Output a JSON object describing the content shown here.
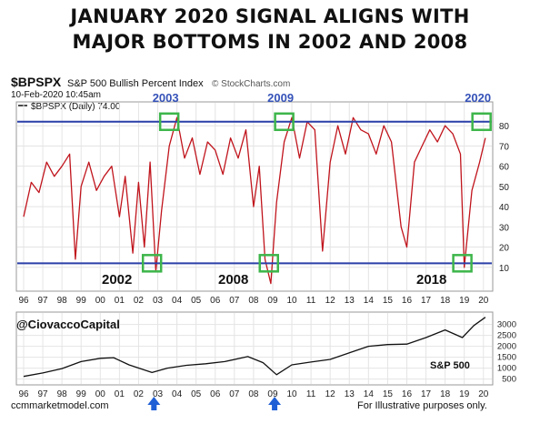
{
  "headline": {
    "line1": "JANUARY 2020 SIGNAL ALIGNS WITH",
    "line2": "MAJOR BOTTOMS IN 2002 AND 2008"
  },
  "header": {
    "symbol": "$BPSPX",
    "name": "S&P 500 Bullish Percent Index",
    "source": "© StockCharts.com",
    "timestamp": "10-Feb-2020 10:45am",
    "legend": "$BPSPX (Daily) 74.00"
  },
  "annotations": {
    "top_years": [
      "2003",
      "2009",
      "2020"
    ],
    "bottom_years": [
      "2002",
      "2008",
      "2018"
    ],
    "handle": "@CiovaccoCapital",
    "sp_label": "S&P 500"
  },
  "footer": {
    "left": "ccmmarketmodel.com",
    "right": "For Illustrative purposes only."
  },
  "colors": {
    "bp_line": "#c0141c",
    "ref_line": "#2a3fa8",
    "box": "#3db54a",
    "arrow": "#1f5fd6",
    "year_label": "#3552b8"
  },
  "chart_data": [
    {
      "type": "line",
      "series": [
        {
          "name": "$BPSPX (Daily)",
          "x": [
            1996,
            1996.4,
            1996.8,
            1997.2,
            1997.6,
            1998,
            1998.4,
            1998.7,
            1999,
            1999.4,
            1999.8,
            2000.2,
            2000.6,
            2001,
            2001.3,
            2001.7,
            2002,
            2002.3,
            2002.6,
            2002.9,
            2003.2,
            2003.6,
            2004,
            2004.4,
            2004.8,
            2005.2,
            2005.6,
            2006,
            2006.4,
            2006.8,
            2007.2,
            2007.6,
            2008,
            2008.3,
            2008.6,
            2008.9,
            2009.2,
            2009.6,
            2010,
            2010.4,
            2010.8,
            2011.2,
            2011.6,
            2012,
            2012.4,
            2012.8,
            2013.2,
            2013.6,
            2014,
            2014.4,
            2014.8,
            2015.2,
            2015.7,
            2016,
            2016.4,
            2016.8,
            2017.2,
            2017.6,
            2018,
            2018.4,
            2018.8,
            2019,
            2019.4,
            2019.8,
            2020.1
          ],
          "values": [
            35,
            52,
            47,
            62,
            55,
            60,
            66,
            14,
            50,
            62,
            48,
            55,
            60,
            35,
            55,
            17,
            52,
            20,
            62,
            8,
            38,
            70,
            84,
            64,
            74,
            56,
            72,
            68,
            56,
            74,
            64,
            78,
            40,
            60,
            14,
            2,
            42,
            72,
            84,
            64,
            82,
            78,
            18,
            62,
            80,
            66,
            84,
            78,
            76,
            66,
            80,
            72,
            30,
            20,
            62,
            70,
            78,
            72,
            80,
            76,
            66,
            10,
            48,
            62,
            74
          ]
        }
      ],
      "title": "S&P 500 Bullish Percent Index",
      "x_ticks": [
        "96",
        "97",
        "98",
        "99",
        "00",
        "01",
        "02",
        "03",
        "04",
        "05",
        "06",
        "07",
        "08",
        "09",
        "10",
        "11",
        "12",
        "13",
        "14",
        "15",
        "16",
        "17",
        "18",
        "19",
        "20"
      ],
      "ylim": [
        0,
        90
      ],
      "y_ticks": [
        10,
        20,
        30,
        40,
        50,
        60,
        70,
        80
      ],
      "reference_lines": [
        82,
        12
      ],
      "highlight_boxes": [
        {
          "x": 2002.7,
          "y": 12
        },
        {
          "x": 2003.6,
          "y": 82
        },
        {
          "x": 2008.8,
          "y": 12
        },
        {
          "x": 2009.6,
          "y": 82
        },
        {
          "x": 2018.9,
          "y": 12
        },
        {
          "x": 2019.9,
          "y": 82
        }
      ],
      "grid": true
    },
    {
      "type": "line",
      "series": [
        {
          "name": "S&P 500",
          "x": [
            1996,
            1997,
            1998,
            1999,
            2000,
            2000.7,
            2001.5,
            2002.7,
            2003.5,
            2004.5,
            2005.5,
            2006.5,
            2007.7,
            2008.5,
            2009.2,
            2010,
            2011,
            2012,
            2013,
            2014,
            2015,
            2016,
            2017,
            2018,
            2018.9,
            2019.5,
            2020.1
          ],
          "values": [
            620,
            780,
            980,
            1300,
            1450,
            1480,
            1150,
            800,
            1000,
            1130,
            1200,
            1300,
            1530,
            1250,
            700,
            1150,
            1280,
            1400,
            1700,
            2000,
            2080,
            2100,
            2400,
            2750,
            2400,
            2950,
            3330
          ]
        }
      ],
      "title": "S&P 500",
      "x_ticks": [
        "96",
        "97",
        "98",
        "99",
        "00",
        "01",
        "02",
        "03",
        "04",
        "05",
        "06",
        "07",
        "08",
        "09",
        "10",
        "11",
        "12",
        "13",
        "14",
        "15",
        "16",
        "17",
        "18",
        "19",
        "20"
      ],
      "ylim": [
        400,
        3400
      ],
      "y_ticks": [
        500,
        1000,
        1500,
        2000,
        2500,
        3000
      ],
      "markers": [
        {
          "x": 2002.8,
          "label": "arrow"
        },
        {
          "x": 2009.1,
          "label": "arrow"
        }
      ],
      "grid": true
    }
  ]
}
